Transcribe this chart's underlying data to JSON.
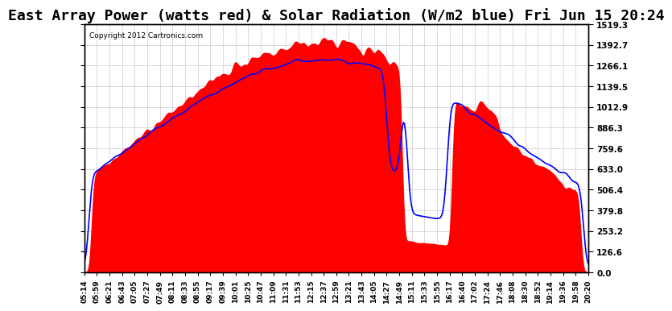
{
  "title": "East Array Power (watts red) & Solar Radiation (W/m2 blue) Fri Jun 15 20:24",
  "copyright": "Copyright 2012 Cartronics.com",
  "ylabel_right_ticks": [
    0.0,
    126.6,
    253.2,
    379.8,
    506.4,
    633.0,
    759.6,
    886.3,
    1012.9,
    1139.5,
    1266.1,
    1392.7,
    1519.3
  ],
  "ymax": 1519.3,
  "ymin": 0.0,
  "background_color": "#ffffff",
  "plot_bg_color": "#ffffff",
  "grid_color": "#cccccc",
  "red_fill_color": "#ff0000",
  "blue_line_color": "#0000ff",
  "title_fontsize": 13,
  "x_labels": [
    "05:14",
    "05:59",
    "06:21",
    "06:43",
    "07:05",
    "07:27",
    "07:49",
    "08:11",
    "08:33",
    "08:55",
    "09:17",
    "09:39",
    "10:01",
    "10:25",
    "10:47",
    "11:09",
    "11:31",
    "11:53",
    "12:15",
    "12:37",
    "12:59",
    "13:21",
    "13:43",
    "14:05",
    "14:27",
    "14:49",
    "15:11",
    "15:33",
    "15:55",
    "16:17",
    "16:40",
    "17:02",
    "17:24",
    "17:46",
    "18:08",
    "18:30",
    "18:52",
    "19:14",
    "19:36",
    "19:58",
    "20:20"
  ]
}
